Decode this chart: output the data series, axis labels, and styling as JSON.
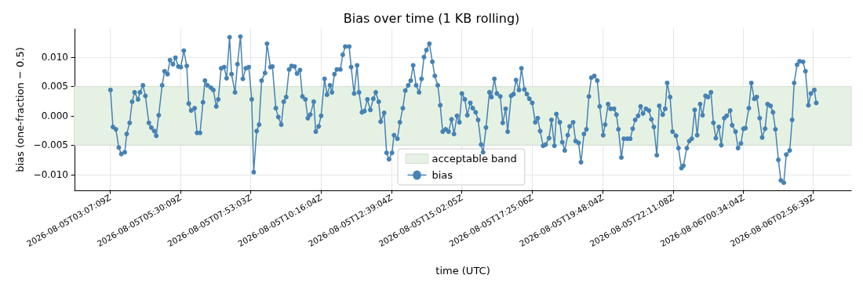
{
  "chart_data": {
    "type": "line",
    "title": "Bias over time (1 KB rolling)",
    "xlabel": "time (UTC)",
    "ylabel": "bias (one-fraction − 0.5)",
    "xlim": [
      "2026-08-05T01:55",
      "2026-08-06T04:13"
    ],
    "xticks": [
      {
        "value": "2026-08-05T03:07",
        "label": "2026-08-05T03:07:09Z"
      },
      {
        "value": "2026-08-05T05:30",
        "label": "2026-08-05T05:30:09Z"
      },
      {
        "value": "2026-08-05T07:53",
        "label": "2026-08-05T07:53:03Z"
      },
      {
        "value": "2026-08-05T10:16",
        "label": "2026-08-05T10:16:04Z"
      },
      {
        "value": "2026-08-05T12:39",
        "label": "2026-08-05T12:39:04Z"
      },
      {
        "value": "2026-08-05T15:02",
        "label": "2026-08-05T15:02:05Z"
      },
      {
        "value": "2026-08-05T17:25",
        "label": "2026-08-05T17:25:06Z"
      },
      {
        "value": "2026-08-05T19:48",
        "label": "2026-08-05T19:48:04Z"
      },
      {
        "value": "2026-08-05T22:11",
        "label": "2026-08-05T22:11:08Z"
      },
      {
        "value": "2026-08-06T00:34",
        "label": "2026-08-06T00:34:04Z"
      },
      {
        "value": "2026-08-06T02:56",
        "label": "2026-08-06T02:56:39Z"
      }
    ],
    "ylim": [
      -0.0127,
      0.0148
    ],
    "yticks": [
      {
        "value": -0.01,
        "label": "−0.010"
      },
      {
        "value": -0.005,
        "label": "−0.005"
      },
      {
        "value": 0,
        "label": "0.000"
      },
      {
        "value": 0.005,
        "label": "0.005"
      },
      {
        "value": 0.01,
        "label": "0.010"
      }
    ],
    "grid": true,
    "legend": "bottom",
    "marker": "circle",
    "line_style": "solid",
    "bands": [
      {
        "axis": "y",
        "from": -0.005,
        "to": 0.005,
        "label": "acceptable band",
        "color": "#e5f2e3"
      }
    ],
    "series": [
      {
        "name": "bias",
        "color": "#4682b4",
        "x": [
          "2026-08-05T03:08",
          "2026-08-05T03:13",
          "2026-08-05T03:19",
          "2026-08-05T03:25",
          "2026-08-05T03:30",
          "2026-08-05T03:37",
          "2026-08-05T03:41",
          "2026-08-05T03:47",
          "2026-08-05T03:52",
          "2026-08-05T03:57",
          "2026-08-05T04:04",
          "2026-08-05T04:08",
          "2026-08-05T04:14",
          "2026-08-05T04:19",
          "2026-08-05T04:26",
          "2026-08-05T04:31",
          "2026-08-05T04:37",
          "2026-08-05T04:41",
          "2026-08-05T04:46",
          "2026-08-05T04:53",
          "2026-08-05T04:58",
          "2026-08-05T05:04",
          "2026-08-05T05:09",
          "2026-08-05T05:15",
          "2026-08-05T05:20",
          "2026-08-05T05:26",
          "2026-08-05T05:31",
          "2026-08-05T05:37",
          "2026-08-05T05:43",
          "2026-08-05T05:47",
          "2026-08-05T05:52",
          "2026-08-05T05:59",
          "2026-08-05T06:04",
          "2026-08-05T06:10",
          "2026-08-05T06:16",
          "2026-08-05T06:20",
          "2026-08-05T06:25",
          "2026-08-05T06:32",
          "2026-08-05T06:37",
          "2026-08-05T06:43",
          "2026-08-05T06:47",
          "2026-08-05T06:53",
          "2026-08-05T06:59",
          "2026-08-05T07:04",
          "2026-08-05T07:10",
          "2026-08-05T07:14",
          "2026-08-05T07:21",
          "2026-08-05T07:26",
          "2026-08-05T07:32",
          "2026-08-05T07:37",
          "2026-08-05T07:43",
          "2026-08-05T07:49",
          "2026-08-05T07:55",
          "2026-08-05T07:59",
          "2026-08-05T08:05",
          "2026-08-05T08:10",
          "2026-08-05T08:15",
          "2026-08-05T08:22",
          "2026-08-05T08:26",
          "2026-08-05T08:33",
          "2026-08-05T08:37",
          "2026-08-05T08:44",
          "2026-08-05T08:49",
          "2026-08-05T08:55",
          "2026-08-05T09:00",
          "2026-08-05T09:05",
          "2026-08-05T09:11",
          "2026-08-05T09:16",
          "2026-08-05T09:22",
          "2026-08-05T09:27",
          "2026-08-05T09:33",
          "2026-08-05T09:38",
          "2026-08-05T09:44",
          "2026-08-05T09:49",
          "2026-08-05T09:54",
          "2026-08-05T10:01",
          "2026-08-05T10:05",
          "2026-08-05T10:11",
          "2026-08-05T10:16",
          "2026-08-05T10:23",
          "2026-08-05T10:28",
          "2026-08-05T10:34",
          "2026-08-05T10:38",
          "2026-08-05T10:43",
          "2026-08-05T10:48",
          "2026-08-05T10:55",
          "2026-08-05T11:00",
          "2026-08-05T11:05",
          "2026-08-05T11:13",
          "2026-08-05T11:17",
          "2026-08-05T11:23",
          "2026-08-05T11:29",
          "2026-08-05T11:33",
          "2026-08-05T11:39",
          "2026-08-05T11:44",
          "2026-08-05T11:50",
          "2026-08-05T11:56",
          "2026-08-05T12:02",
          "2026-08-05T12:07",
          "2026-08-05T12:13",
          "2026-08-05T12:17",
          "2026-08-05T12:24",
          "2026-08-05T12:29",
          "2026-08-05T12:34",
          "2026-08-05T12:40",
          "2026-08-05T12:44",
          "2026-08-05T12:51",
          "2026-08-05T12:56",
          "2026-08-05T13:02",
          "2026-08-05T13:07",
          "2026-08-05T13:13",
          "2026-08-05T13:18",
          "2026-08-05T13:23",
          "2026-08-05T13:29",
          "2026-08-05T13:35",
          "2026-08-05T13:40",
          "2026-08-05T13:45",
          "2026-08-05T13:50",
          "2026-08-05T13:56",
          "2026-08-05T14:02",
          "2026-08-05T14:07",
          "2026-08-05T14:13",
          "2026-08-05T14:18",
          "2026-08-05T14:23",
          "2026-08-05T14:29",
          "2026-08-05T14:35",
          "2026-08-05T14:41",
          "2026-08-05T14:46",
          "2026-08-05T14:52",
          "2026-08-05T14:57",
          "2026-08-05T15:02",
          "2026-08-05T15:08",
          "2026-08-05T15:13",
          "2026-08-05T15:19",
          "2026-08-05T15:24",
          "2026-08-05T15:30",
          "2026-08-05T15:35",
          "2026-08-05T15:41",
          "2026-08-05T15:45",
          "2026-08-05T15:51",
          "2026-08-05T15:58",
          "2026-08-05T16:02",
          "2026-08-05T16:08",
          "2026-08-05T16:13",
          "2026-08-05T16:20",
          "2026-08-05T16:25",
          "2026-08-05T16:31",
          "2026-08-05T16:35",
          "2026-08-05T16:42",
          "2026-08-05T16:47",
          "2026-08-05T16:52",
          "2026-08-05T16:58",
          "2026-08-05T17:03",
          "2026-08-05T17:09",
          "2026-08-05T17:14",
          "2026-08-05T17:19",
          "2026-08-05T17:25",
          "2026-08-05T17:31",
          "2026-08-05T17:36",
          "2026-08-05T17:41",
          "2026-08-05T17:47",
          "2026-08-05T17:52",
          "2026-08-05T17:59",
          "2026-08-05T18:04",
          "2026-08-05T18:10",
          "2026-08-05T18:14",
          "2026-08-05T18:21",
          "2026-08-05T18:26",
          "2026-08-05T18:31",
          "2026-08-05T18:37",
          "2026-08-05T18:41",
          "2026-08-05T18:48",
          "2026-08-05T18:53",
          "2026-08-05T18:59",
          "2026-08-05T19:04",
          "2026-08-05T19:10",
          "2026-08-05T19:15",
          "2026-08-05T19:20",
          "2026-08-05T19:25",
          "2026-08-05T19:31",
          "2026-08-05T19:37",
          "2026-08-05T19:42",
          "2026-08-05T19:49",
          "2026-08-05T19:53",
          "2026-08-05T19:59",
          "2026-08-05T20:04",
          "2026-08-05T20:11",
          "2026-08-05T20:16",
          "2026-08-05T20:20",
          "2026-08-05T20:26",
          "2026-08-05T20:31",
          "2026-08-05T20:38",
          "2026-08-05T20:44",
          "2026-08-05T20:49",
          "2026-08-05T20:54",
          "2026-08-05T21:00",
          "2026-08-05T21:05",
          "2026-08-05T21:10",
          "2026-08-05T21:16",
          "2026-08-05T21:22",
          "2026-08-05T21:27",
          "2026-08-05T21:32",
          "2026-08-05T21:38",
          "2026-08-05T21:43",
          "2026-08-05T21:50",
          "2026-08-05T21:55",
          "2026-08-05T21:59",
          "2026-08-05T22:05",
          "2026-08-05T22:10",
          "2026-08-05T22:17",
          "2026-08-05T22:22",
          "2026-08-05T22:28",
          "2026-08-05T22:32",
          "2026-08-05T22:39",
          "2026-08-05T22:44",
          "2026-08-05T22:49",
          "2026-08-05T22:55",
          "2026-08-05T23:00",
          "2026-08-05T23:06",
          "2026-08-05T23:11",
          "2026-08-05T23:17",
          "2026-08-05T23:22",
          "2026-08-05T23:28",
          "2026-08-05T23:33",
          "2026-08-05T23:38",
          "2026-08-05T23:44",
          "2026-08-05T23:49",
          "2026-08-05T23:55",
          "2026-08-06T00:00",
          "2026-08-06T00:07",
          "2026-08-06T00:11",
          "2026-08-06T00:18",
          "2026-08-06T00:23",
          "2026-08-06T00:29",
          "2026-08-06T00:34",
          "2026-08-06T00:38",
          "2026-08-06T00:45",
          "2026-08-06T00:50",
          "2026-08-06T00:56",
          "2026-08-06T01:01",
          "2026-08-06T01:07",
          "2026-08-06T01:12",
          "2026-08-06T01:18",
          "2026-08-06T01:23",
          "2026-08-06T01:29",
          "2026-08-06T01:34",
          "2026-08-06T01:39",
          "2026-08-06T01:45",
          "2026-08-06T01:50",
          "2026-08-06T01:56",
          "2026-08-06T02:01",
          "2026-08-06T02:08",
          "2026-08-06T02:13",
          "2026-08-06T02:17",
          "2026-08-06T02:23",
          "2026-08-06T02:28",
          "2026-08-06T02:35",
          "2026-08-06T02:40",
          "2026-08-06T02:46",
          "2026-08-06T02:51",
          "2026-08-06T02:58",
          "2026-08-06T03:02"
        ],
        "values": [
          0.0044,
          -0.0019,
          -0.0023,
          -0.0054,
          -0.0065,
          -0.0062,
          -0.0031,
          -0.0012,
          0.0024,
          0.004,
          0.0028,
          0.004,
          0.0052,
          0.0034,
          -0.0012,
          -0.002,
          -0.0026,
          -0.0034,
          0.0001,
          0.0052,
          0.0076,
          0.0071,
          0.0095,
          0.0088,
          0.0099,
          0.0084,
          0.0083,
          0.0111,
          0.0085,
          0.0021,
          0.0009,
          0.0013,
          -0.0029,
          -0.0029,
          0.0023,
          0.006,
          0.0052,
          0.0048,
          0.0044,
          0.0016,
          0.0028,
          0.0081,
          0.0083,
          0.0064,
          0.0134,
          0.0071,
          0.004,
          0.0088,
          0.0135,
          0.0063,
          0.0081,
          0.0083,
          0.0028,
          -0.0096,
          -0.0026,
          -0.0015,
          0.006,
          0.0073,
          0.0123,
          0.0083,
          0.0084,
          0.0013,
          -0.0002,
          -0.0015,
          0.0024,
          0.0032,
          0.0079,
          0.0085,
          0.0084,
          0.0072,
          0.0078,
          0.0033,
          0.0028,
          -0.0004,
          0.0002,
          0.0024,
          -0.0027,
          -0.0018,
          0.0,
          0.0063,
          0.0036,
          0.0052,
          0.004,
          0.0071,
          0.0079,
          0.0079,
          0.0104,
          0.0118,
          0.0118,
          0.0083,
          0.0038,
          0.0086,
          0.004,
          0.0006,
          0.0008,
          0.0028,
          0.001,
          0.0029,
          0.004,
          0.0024,
          -0.001,
          0.0005,
          -0.0063,
          -0.0074,
          -0.0063,
          -0.0033,
          -0.0039,
          -0.0011,
          0.0013,
          0.0043,
          0.0052,
          0.006,
          0.0086,
          0.0052,
          0.004,
          0.0063,
          0.01,
          0.0112,
          0.0123,
          0.0092,
          0.0068,
          0.0052,
          0.0018,
          -0.0027,
          -0.0023,
          -0.0027,
          -0.0006,
          -0.0031,
          0.0,
          -0.0011,
          0.0038,
          0.0028,
          0.0001,
          0.0022,
          0.0013,
          0.0006,
          -0.0007,
          -0.0049,
          -0.0062,
          -0.002,
          0.004,
          0.0032,
          0.0063,
          0.0038,
          0.0033,
          -0.0012,
          0.0012,
          -0.0027,
          0.0034,
          0.0037,
          0.0061,
          0.0044,
          0.0081,
          0.0045,
          0.0037,
          0.0029,
          0.0022,
          -0.0011,
          -0.0004,
          -0.0026,
          -0.0051,
          -0.0049,
          -0.0038,
          -0.0007,
          -0.0051,
          0.0003,
          -0.0011,
          -0.0045,
          -0.0059,
          -0.0033,
          -0.0018,
          -0.0011,
          -0.0043,
          -0.0046,
          -0.0079,
          -0.0031,
          -0.0023,
          0.0033,
          0.0065,
          0.0068,
          0.006,
          0.0016,
          -0.0033,
          -0.0015,
          0.002,
          0.0012,
          0.0012,
          0.0002,
          -0.0023,
          -0.0071,
          -0.0039,
          -0.0039,
          -0.0039,
          -0.0022,
          -0.0007,
          0.0,
          0.0016,
          0.0004,
          0.0012,
          0.0009,
          -0.0006,
          -0.0019,
          -0.0067,
          0.0017,
          0.0002,
          0.0012,
          0.0056,
          0.0032,
          -0.0027,
          -0.0034,
          -0.0055,
          -0.0089,
          -0.0085,
          -0.0055,
          -0.0043,
          -0.0039,
          0.001,
          -0.0033,
          0.002,
          0.0001,
          0.0034,
          0.0032,
          0.004,
          -0.0012,
          -0.0038,
          -0.0019,
          -0.005,
          -0.0004,
          0.0,
          0.0009,
          -0.0016,
          -0.0027,
          -0.0055,
          -0.0047,
          -0.0022,
          -0.0021,
          0.0013,
          0.0056,
          0.0029,
          0.0032,
          -0.0004,
          -0.0037,
          -0.0022,
          0.002,
          0.0017,
          0.0006,
          -0.0023,
          -0.0075,
          -0.011,
          -0.0114,
          -0.0066,
          -0.0059,
          -0.0007,
          0.0056,
          0.0087,
          0.0093,
          0.0092,
          0.0076,
          0.0018,
          0.0038,
          0.0044,
          0.0022
        ]
      }
    ]
  }
}
